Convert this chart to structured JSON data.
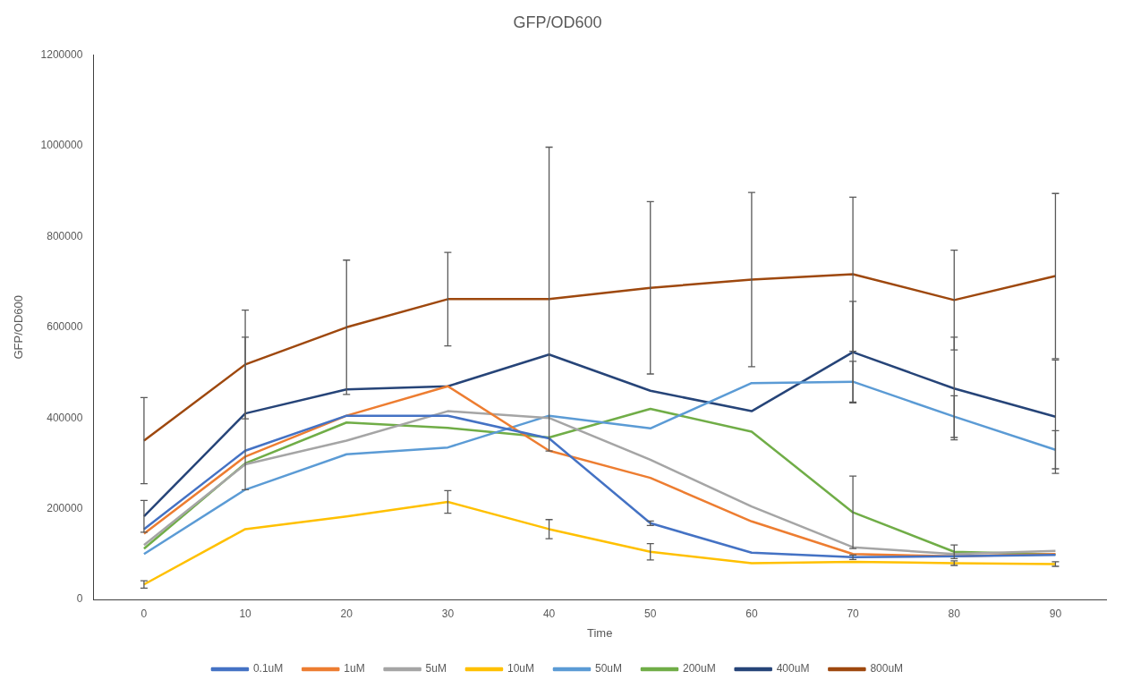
{
  "chart_data": {
    "type": "line",
    "title": "GFP/OD600",
    "xlabel": "Time",
    "ylabel": "GFP/OD600",
    "categories": [
      "0",
      "10",
      "20",
      "30",
      "40",
      "50",
      "60",
      "70",
      "80",
      "90"
    ],
    "ylim": [
      0,
      1200000
    ],
    "yticks": [
      0,
      200000,
      400000,
      600000,
      800000,
      1000000,
      1200000
    ],
    "grid": false,
    "legend": "bottom",
    "marker": "none",
    "line_style": "solid",
    "series": [
      {
        "name": "0.1uM",
        "color": "#4472c4",
        "values": [
          155000,
          328000,
          405000,
          405000,
          355000,
          168000,
          103000,
          93000,
          95000,
          98000
        ],
        "errors": [
          null,
          null,
          null,
          null,
          null,
          5000,
          null,
          5000,
          null,
          null
        ]
      },
      {
        "name": "1uM",
        "color": "#ed7d31",
        "values": [
          145000,
          315000,
          405000,
          470000,
          328000,
          268000,
          172000,
          100000,
          95000,
          100000
        ]
      },
      {
        "name": "5uM",
        "color": "#a5a5a5",
        "values": [
          120000,
          298000,
          350000,
          415000,
          400000,
          308000,
          205000,
          115000,
          100000,
          107000
        ]
      },
      {
        "name": "10uM",
        "color": "#ffc000",
        "values": [
          33000,
          155000,
          183000,
          215000,
          155000,
          105000,
          80000,
          83000,
          80000,
          78000
        ],
        "errors": [
          8000,
          null,
          null,
          25000,
          21000,
          18000,
          null,
          null,
          5000,
          5000
        ]
      },
      {
        "name": "50uM",
        "color": "#5b9bd5",
        "values": [
          100000,
          242000,
          320000,
          335000,
          405000,
          377000,
          477000,
          480000,
          403000,
          330000
        ],
        "errors": [
          null,
          null,
          null,
          null,
          null,
          null,
          null,
          45000,
          46000,
          42000
        ]
      },
      {
        "name": "200uM",
        "color": "#70ad47",
        "values": [
          112000,
          300000,
          390000,
          378000,
          357000,
          420000,
          370000,
          192000,
          105000,
          99000
        ],
        "errors": [
          null,
          null,
          null,
          null,
          null,
          null,
          null,
          80000,
          15000,
          null
        ]
      },
      {
        "name": "400uM",
        "color": "#264478",
        "values": [
          183000,
          410000,
          463000,
          470000,
          540000,
          460000,
          415000,
          545000,
          465000,
          403000
        ],
        "errors": [
          35000,
          168000,
          null,
          null,
          null,
          null,
          null,
          112000,
          113000,
          125000
        ]
      },
      {
        "name": "800uM",
        "color": "#9e480e",
        "values": [
          350000,
          518000,
          600000,
          662000,
          662000,
          687000,
          705000,
          717000,
          660000,
          713000
        ],
        "errors": [
          95000,
          120000,
          148000,
          103000,
          335000,
          190000,
          192000,
          170000,
          110000,
          182000
        ]
      }
    ]
  }
}
